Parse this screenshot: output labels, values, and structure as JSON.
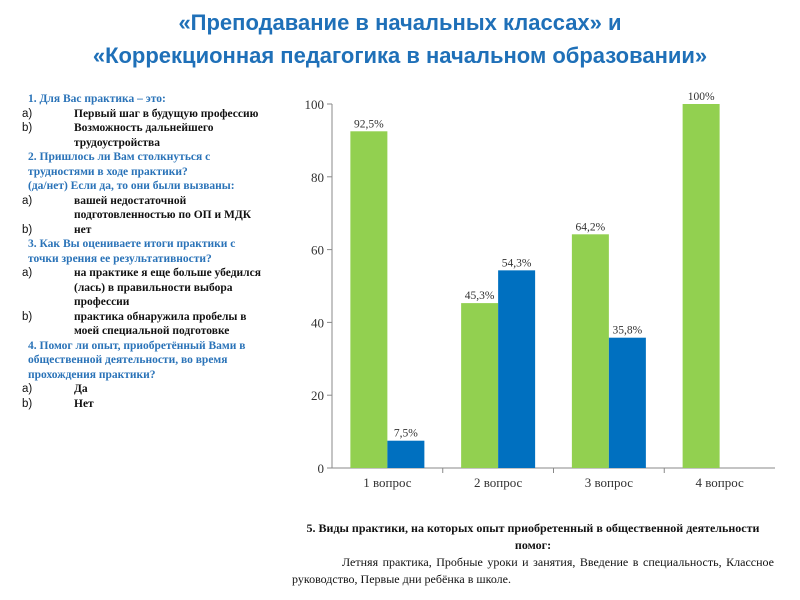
{
  "title": {
    "line1": "«Преподавание в начальных классах» и",
    "line2": "«Коррекционная педагогика в начальном образовании»"
  },
  "questions": [
    {
      "text": "1. Для Вас практика – это:",
      "options": [
        {
          "m": "a)",
          "t": "Первый шаг в будущую профессию"
        },
        {
          "m": "b)",
          "t": "Возможность дальнейшего трудоустройства"
        }
      ]
    },
    {
      "text": "2. Пришлось ли Вам столкнуться с трудностями в ходе практики?",
      "text2": "(да/нет) Если да, то они были вызваны:",
      "options": [
        {
          "m": "a)",
          "t": "вашей недостаточной подготовленностью по ОП и МДК"
        },
        {
          "m": "b)",
          "t": "нет"
        }
      ]
    },
    {
      "text": "3. Как Вы оцениваете итоги практики с точки зрения ее результативности?",
      "options": [
        {
          "m": "a)",
          "t": "на практике я еще больше убедился (лась) в правильности выбора профессии"
        },
        {
          "m": "b)",
          "t": "практика обнаружила пробелы в моей специальной подготовке"
        }
      ]
    },
    {
      "text": "4. Помог ли опыт, приобретённый Вами в общественной деятельности, во время прохождения практики?",
      "options": [
        {
          "m": "a)",
          "t": "Да"
        },
        {
          "m": "b)",
          "t": "Нет"
        }
      ]
    }
  ],
  "bottom": {
    "heading": "5. Виды практики, на которых опыт приобретенный в общественной деятельности помог:",
    "text": "Летняя практика, Пробные уроки и занятия, Введение в специальность, Классное руководство,  Первые дни ребёнка в школе."
  },
  "chart_data": {
    "type": "bar",
    "categories": [
      "1 вопрос",
      "2 вопрос",
      "3 вопрос",
      "4 вопрос"
    ],
    "series": [
      {
        "name": "a",
        "color": "#92d050",
        "values": [
          92.5,
          45.3,
          64.2,
          100
        ],
        "labels": [
          "92,5%",
          "45,3%",
          "64,2%",
          "100%"
        ]
      },
      {
        "name": "b",
        "color": "#0070c0",
        "values": [
          7.5,
          54.3,
          35.8,
          null
        ],
        "labels": [
          "7,5%",
          "54,3%",
          "35,8%",
          null
        ]
      }
    ],
    "ylim": [
      0,
      100
    ],
    "yticks": [
      0,
      20,
      40,
      60,
      80,
      100
    ],
    "grid": false,
    "legend": "none"
  }
}
